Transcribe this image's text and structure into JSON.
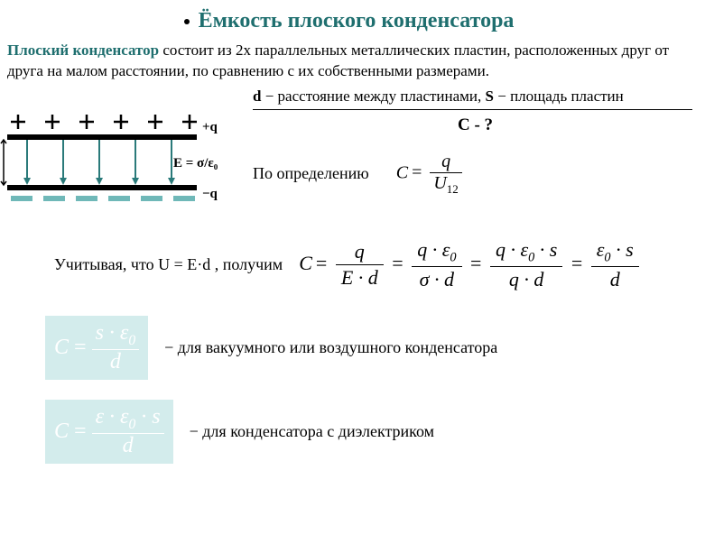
{
  "title": "Ёмкость плоского конденсатора",
  "intro": {
    "term": "Плоский конденсатор",
    "rest": " состоит из 2х параллельных металлических пластин, расположенных друг от друга на малом расстоянии, по сравнению с их собственными размерами."
  },
  "given": {
    "d_bold": "d",
    "d_text": " − расстояние между пластинами, ",
    "s_bold": "S",
    "s_text": " − площадь пластин"
  },
  "find": "C - ?",
  "definition": {
    "label": "По определению",
    "lhs": "C",
    "num": "q",
    "den_var": "U",
    "den_sub": "12"
  },
  "derivation": {
    "label": "Учитывая, что U = E·d , получим",
    "lhs": "C",
    "t1": {
      "num": "q",
      "den": "E · d"
    },
    "t2": {
      "num": "q · ε",
      "num_sub": "0",
      "den": "σ · d"
    },
    "t3": {
      "num1": "q · ε",
      "num1_sub": "0",
      "num2": " · s",
      "den": "q · d"
    },
    "t4": {
      "num": "ε",
      "num_sub": "0",
      "num2": " · s",
      "den": "d"
    }
  },
  "vacuum": {
    "lhs": "C",
    "num1": "s · ε",
    "num1_sub": "0",
    "den": "d",
    "desc": "− для вакуумного или воздушного конденсатора"
  },
  "dielectric": {
    "lhs": "C",
    "num": "ε · ε",
    "num_sub": "0",
    "num2": " · s",
    "den": "d",
    "desc": "− для конденсатора с диэлектриком"
  },
  "diagram": {
    "plus_q": "+q",
    "minus_q": "−q",
    "d_label": "d",
    "e_label": "E = σ/ε₀",
    "colors": {
      "plate": "#000000",
      "bottom_seg": "#6fb8b8",
      "arrow": "#2a7a7a",
      "plus": "#000000"
    }
  }
}
